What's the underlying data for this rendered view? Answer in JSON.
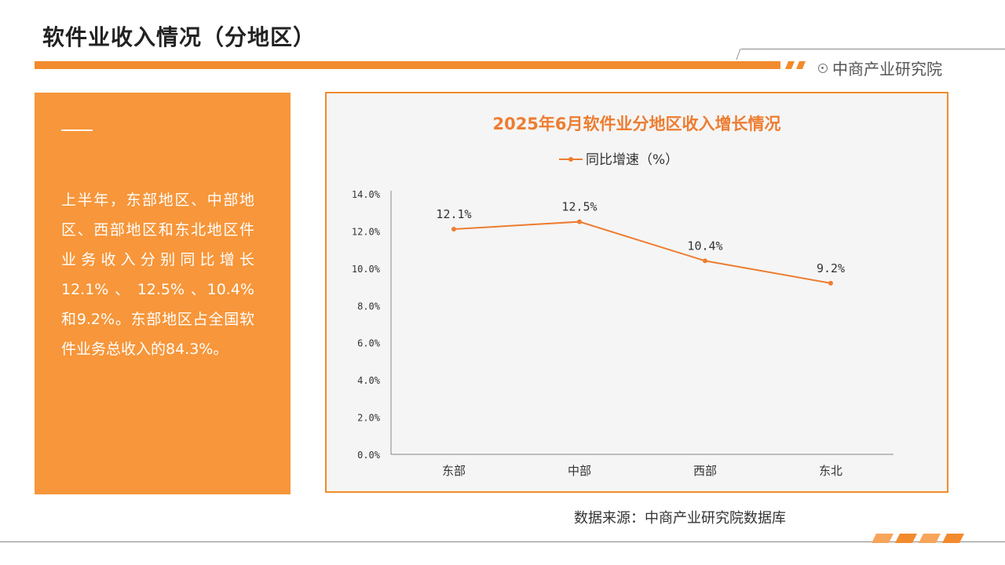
{
  "page": {
    "title": "软件业收入情况（分地区）",
    "brand": "中商产业研究院",
    "source": "数据来源：中商产业研究院数据库"
  },
  "summary": {
    "text": "上半年，东部地区、中部地区、西部地区和东北地区件业务收入分别同比增长 12.1% 、 12.5% 、10.4%和9.2%。东部地区占全国软件业务总收入的84.3%。"
  },
  "colors": {
    "accent": "#f28b2d",
    "panel": "#f7963a",
    "line": "#ed7d31"
  },
  "chart_data": {
    "type": "line",
    "title": "2025年6月软件业分地区收入增长情况",
    "categories": [
      "东部",
      "中部",
      "西部",
      "东北"
    ],
    "series": [
      {
        "name": "同比增速（%）",
        "values": [
          12.1,
          12.5,
          10.4,
          9.2
        ]
      }
    ],
    "data_labels": [
      "12.1%",
      "12.5%",
      "10.4%",
      "9.2%"
    ],
    "y_ticks": [
      "0.0%",
      "2.0%",
      "4.0%",
      "6.0%",
      "8.0%",
      "10.0%",
      "12.0%",
      "14.0%"
    ],
    "ylim": [
      0,
      14
    ],
    "legend_position": "top",
    "grid": false
  }
}
